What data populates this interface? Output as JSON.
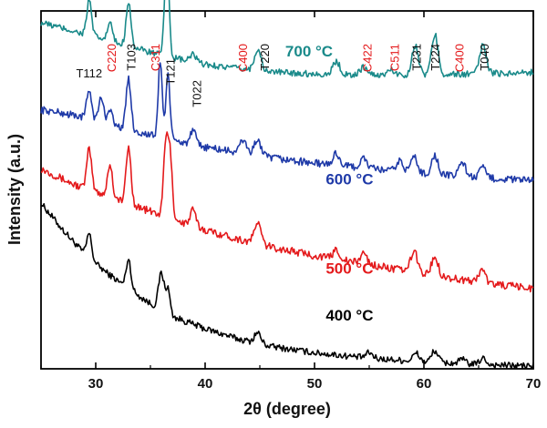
{
  "chart_data": {
    "type": "line",
    "xlabel": "2θ (degree)",
    "ylabel": "Intensity (a.u.)",
    "xlim": [
      25,
      70
    ],
    "xticks": [
      30,
      40,
      50,
      60,
      70
    ],
    "yaxis_ticks": "none",
    "grid": false,
    "legend": "inline labels on curves",
    "series": [
      {
        "name": "400 °C",
        "label_text": "400 °C",
        "color": "#000000",
        "offset": 0.0,
        "baseline": [
          [
            25,
            3.1
          ],
          [
            27,
            2.6
          ],
          [
            29,
            2.15
          ],
          [
            31,
            1.8
          ],
          [
            33,
            1.5
          ],
          [
            35,
            1.22
          ],
          [
            37,
            0.98
          ],
          [
            40,
            0.75
          ],
          [
            43,
            0.56
          ],
          [
            46,
            0.42
          ],
          [
            50,
            0.3
          ],
          [
            55,
            0.2
          ],
          [
            60,
            0.13
          ],
          [
            65,
            0.08
          ],
          [
            70,
            0.05
          ]
        ],
        "peaks": [
          [
            29.4,
            0.45,
            0.22
          ],
          [
            33.0,
            0.55,
            0.22
          ],
          [
            36.0,
            0.7,
            0.25
          ],
          [
            36.6,
            0.45,
            0.2
          ],
          [
            44.8,
            0.2,
            0.3
          ],
          [
            55.0,
            0.1,
            0.3
          ],
          [
            59.3,
            0.15,
            0.3
          ],
          [
            61.0,
            0.22,
            0.3
          ],
          [
            63.5,
            0.08,
            0.3
          ],
          [
            65.4,
            0.12,
            0.3
          ]
        ],
        "noise": 0.06
      },
      {
        "name": "500 °C",
        "label_text": "500 °C",
        "color": "#e41a1c",
        "offset": 1.4,
        "baseline": [
          [
            25,
            2.35
          ],
          [
            28,
            2.05
          ],
          [
            31,
            1.85
          ],
          [
            34,
            1.62
          ],
          [
            37,
            1.4
          ],
          [
            40,
            1.2
          ],
          [
            43,
            1.03
          ],
          [
            46,
            0.88
          ],
          [
            50,
            0.72
          ],
          [
            55,
            0.55
          ],
          [
            60,
            0.38
          ],
          [
            65,
            0.22
          ],
          [
            70,
            0.1
          ]
        ],
        "peaks": [
          [
            29.4,
            0.75,
            0.22
          ],
          [
            31.3,
            0.6,
            0.22
          ],
          [
            33.0,
            1.05,
            0.22
          ],
          [
            36.4,
            1.35,
            0.2
          ],
          [
            36.8,
            1.15,
            0.2
          ],
          [
            38.9,
            0.3,
            0.25
          ],
          [
            44.8,
            0.4,
            0.3
          ],
          [
            52.0,
            0.18,
            0.3
          ],
          [
            54.5,
            0.2,
            0.3
          ],
          [
            59.1,
            0.4,
            0.3
          ],
          [
            61.0,
            0.35,
            0.3
          ],
          [
            65.3,
            0.25,
            0.3
          ]
        ],
        "noise": 0.07
      },
      {
        "name": "600 °C",
        "label_text": "600 °C",
        "color": "#1f3aa8",
        "offset": 2.8,
        "baseline": [
          [
            25,
            2.05
          ],
          [
            28,
            1.95
          ],
          [
            31,
            1.8
          ],
          [
            34,
            1.62
          ],
          [
            37,
            1.48
          ],
          [
            40,
            1.35
          ],
          [
            43,
            1.25
          ],
          [
            46,
            1.15
          ],
          [
            50,
            1.05
          ],
          [
            55,
            0.95
          ],
          [
            60,
            0.85
          ],
          [
            65,
            0.78
          ],
          [
            70,
            0.72
          ]
        ],
        "peaks": [
          [
            29.4,
            0.55,
            0.22
          ],
          [
            30.5,
            0.45,
            0.22
          ],
          [
            31.3,
            0.3,
            0.2
          ],
          [
            33.0,
            0.95,
            0.22
          ],
          [
            35.9,
            1.45,
            0.18
          ],
          [
            36.6,
            1.25,
            0.18
          ],
          [
            38.9,
            0.25,
            0.25
          ],
          [
            43.5,
            0.25,
            0.3
          ],
          [
            44.8,
            0.3,
            0.3
          ],
          [
            52.0,
            0.22,
            0.3
          ],
          [
            54.5,
            0.18,
            0.3
          ],
          [
            57.8,
            0.2,
            0.3
          ],
          [
            59.1,
            0.3,
            0.3
          ],
          [
            61.0,
            0.35,
            0.3
          ],
          [
            63.5,
            0.28,
            0.3
          ],
          [
            65.4,
            0.18,
            0.3
          ]
        ],
        "noise": 0.07
      },
      {
        "name": "700 °C",
        "label_text": "700 °C",
        "color": "#1a8a8a",
        "offset": 4.2,
        "baseline": [
          [
            25,
            2.28
          ],
          [
            28,
            2.12
          ],
          [
            31,
            1.95
          ],
          [
            34,
            1.78
          ],
          [
            37,
            1.62
          ],
          [
            40,
            1.5
          ],
          [
            43,
            1.42
          ],
          [
            46,
            1.36
          ],
          [
            50,
            1.32
          ],
          [
            55,
            1.3
          ],
          [
            60,
            1.3
          ],
          [
            65,
            1.32
          ],
          [
            70,
            1.35
          ]
        ],
        "peaks": [
          [
            29.4,
            0.65,
            0.22
          ],
          [
            31.3,
            0.35,
            0.22
          ],
          [
            33.0,
            0.85,
            0.22
          ],
          [
            36.5,
            1.9,
            0.2
          ],
          [
            38.9,
            0.15,
            0.25
          ],
          [
            44.8,
            0.4,
            0.3
          ],
          [
            52.0,
            0.25,
            0.3
          ],
          [
            54.5,
            0.15,
            0.3
          ],
          [
            57.0,
            0.1,
            0.3
          ],
          [
            59.2,
            0.55,
            0.3
          ],
          [
            61.0,
            0.75,
            0.3
          ],
          [
            65.4,
            0.55,
            0.3
          ]
        ],
        "noise": 0.06
      }
    ],
    "annotations": [
      {
        "text": "T112",
        "x": 29.4,
        "color": "#111111",
        "rotate": false
      },
      {
        "text": "C220",
        "x": 31.4,
        "color": "#e41a1c",
        "rotate": true
      },
      {
        "text": "T103",
        "x": 33.2,
        "color": "#111111",
        "rotate": true
      },
      {
        "text": "C311",
        "x": 35.4,
        "color": "#e41a1c",
        "rotate": true
      },
      {
        "text": "T121",
        "x": 36.8,
        "color": "#111111",
        "rotate": true
      },
      {
        "text": "T022",
        "x": 39.2,
        "color": "#111111",
        "rotate": true
      },
      {
        "text": "C400",
        "x": 43.4,
        "color": "#e41a1c",
        "rotate": true
      },
      {
        "text": "T220",
        "x": 45.4,
        "color": "#111111",
        "rotate": true
      },
      {
        "text": "C422",
        "x": 54.8,
        "color": "#e41a1c",
        "rotate": true
      },
      {
        "text": "C511",
        "x": 57.3,
        "color": "#e41a1c",
        "rotate": true
      },
      {
        "text": "T231",
        "x": 59.3,
        "color": "#111111",
        "rotate": true
      },
      {
        "text": "T224",
        "x": 61.0,
        "color": "#111111",
        "rotate": true
      },
      {
        "text": "C400",
        "x": 63.2,
        "color": "#e41a1c",
        "rotate": true
      },
      {
        "text": "T040",
        "x": 65.5,
        "color": "#111111",
        "rotate": true
      }
    ]
  }
}
